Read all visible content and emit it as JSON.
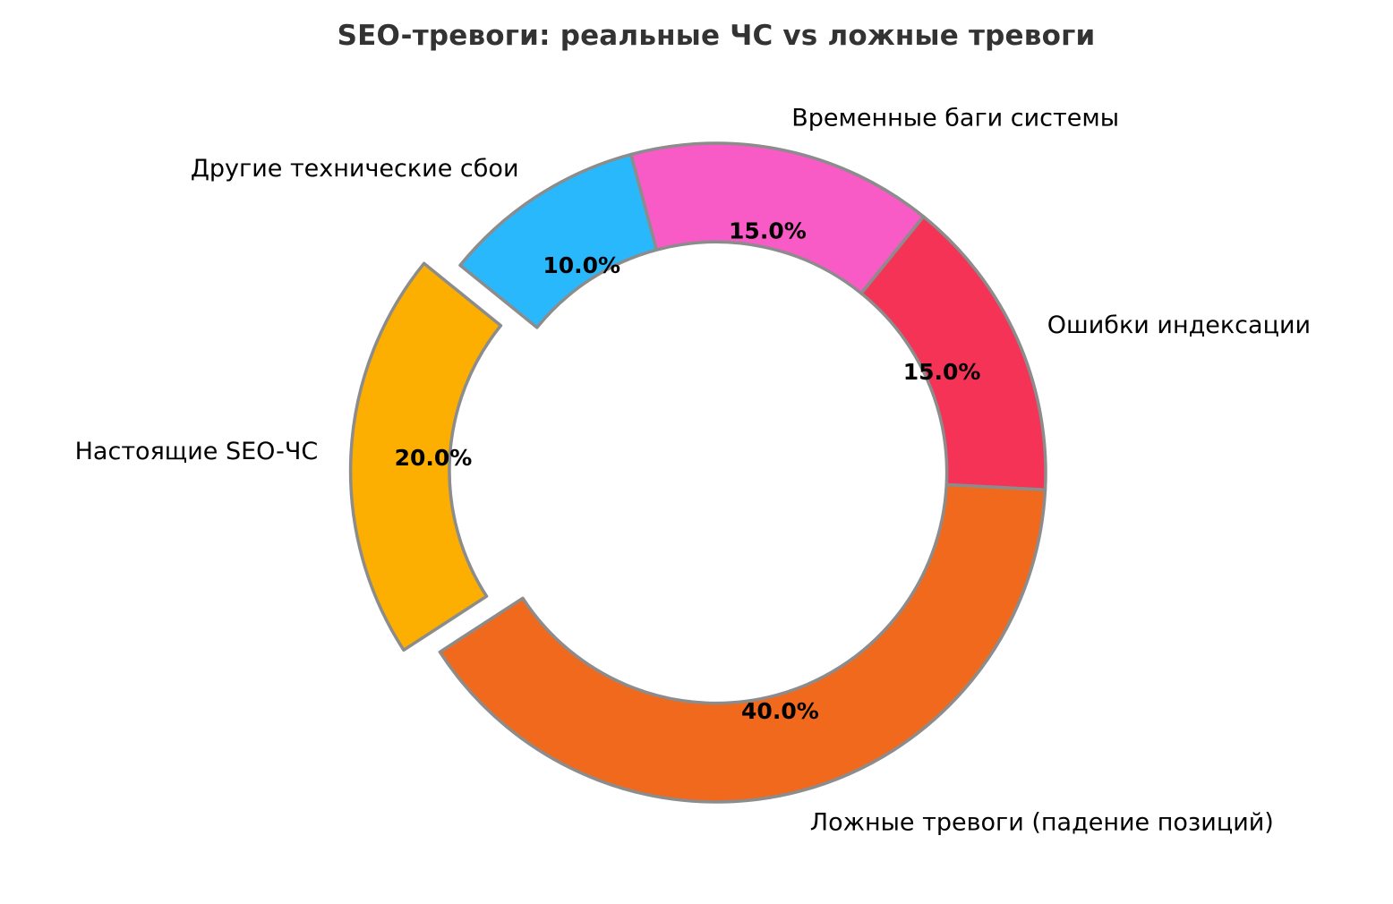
{
  "chart_data": {
    "type": "pie",
    "title": "SEO-тревоги: реальные ЧС vs ложные тревоги",
    "donut": true,
    "inner_radius_ratio": 0.7,
    "start_angle_deg": 105,
    "direction": "clockwise",
    "grid": false,
    "legend_position": "none",
    "edge_color": "#8C8C8C",
    "edge_width": 3.5,
    "slices": [
      {
        "label": "Временные баги системы",
        "value": 15,
        "pct_label": "15.0%",
        "color": "#F85AC6",
        "explode": 0
      },
      {
        "label": "Ошибки индексации",
        "value": 15,
        "pct_label": "15.0%",
        "color": "#F43357",
        "explode": 0
      },
      {
        "label": "Ложные тревоги (падение позиций)",
        "value": 40,
        "pct_label": "40.0%",
        "color": "#F1691D",
        "explode": 0
      },
      {
        "label": "Настоящие SEO-ЧС",
        "value": 20,
        "pct_label": "20.0%",
        "color": "#FCAF00",
        "explode": 0.11
      },
      {
        "label": "Другие технические сбои",
        "value": 10,
        "pct_label": "10.0%",
        "color": "#29B8FC",
        "explode": 0
      }
    ]
  }
}
